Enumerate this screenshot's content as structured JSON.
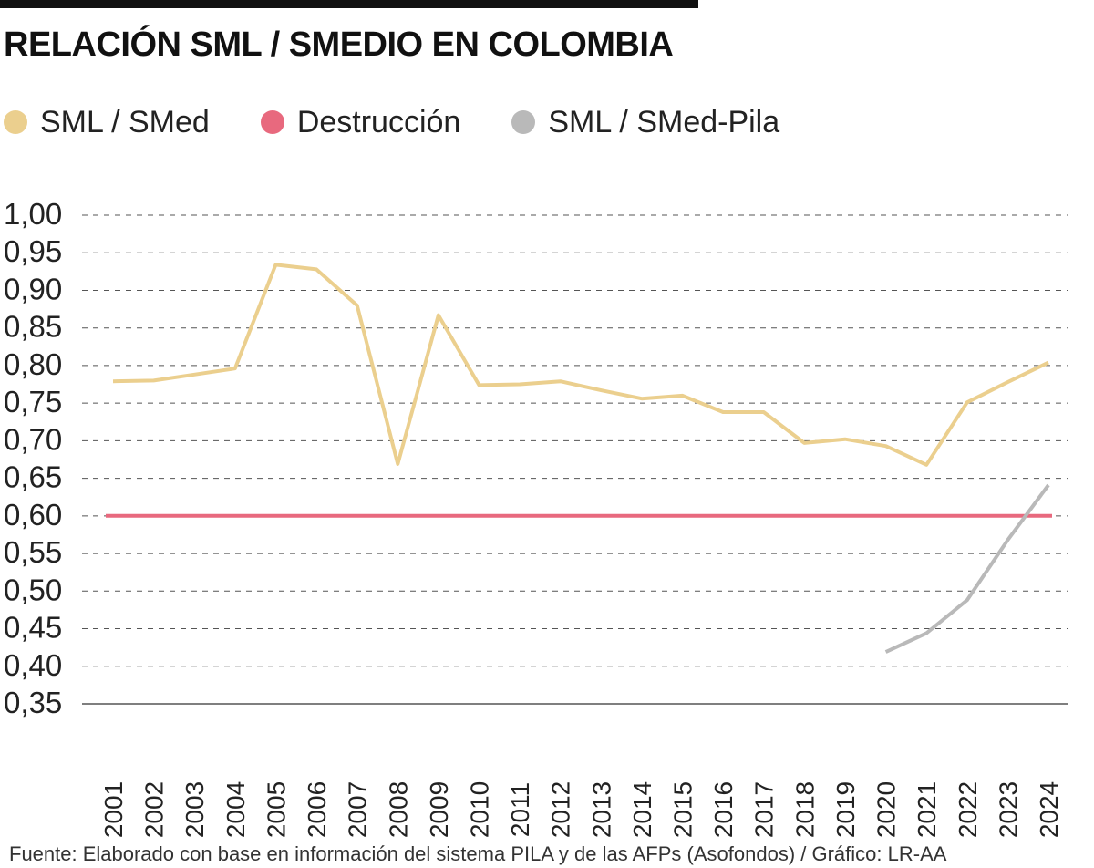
{
  "chart_data": {
    "type": "line",
    "title": "RELACIÓN SML / SMEDIO EN COLOMBIA",
    "x": [
      "2001",
      "2002",
      "2003",
      "2004",
      "2005",
      "2006",
      "2007",
      "2008",
      "2009",
      "2010",
      "2011",
      "2012",
      "2013",
      "2014",
      "2015",
      "2016",
      "2017",
      "2018",
      "2019",
      "2020",
      "2021",
      "2022",
      "2023",
      "2024"
    ],
    "yticks": [
      "1,00",
      "0,95",
      "0,90",
      "0,85",
      "0,80",
      "0,75",
      "0,70",
      "0,65",
      "0,60",
      "0,55",
      "0,50",
      "0,45",
      "0,40",
      "0,35"
    ],
    "ylim": [
      0.35,
      1.0
    ],
    "grid": true,
    "series": [
      {
        "name": "SML / SMed",
        "color": "#ebcf8e",
        "values": [
          0.779,
          0.78,
          0.788,
          0.796,
          0.934,
          0.928,
          0.88,
          0.669,
          0.867,
          0.774,
          0.775,
          0.779,
          0.767,
          0.756,
          0.76,
          0.738,
          0.738,
          0.697,
          0.702,
          0.693,
          0.668,
          0.751,
          0.778,
          0.804
        ]
      },
      {
        "name": "Destrucción",
        "color": "#e8697e",
        "values": [
          0.6,
          0.6,
          0.6,
          0.6,
          0.6,
          0.6,
          0.6,
          0.6,
          0.6,
          0.6,
          0.6,
          0.6,
          0.6,
          0.6,
          0.6,
          0.6,
          0.6,
          0.6,
          0.6,
          0.6,
          0.6,
          0.6,
          0.6,
          0.6
        ]
      },
      {
        "name": "SML / SMed-Pila",
        "color": "#b9b9b9",
        "values": [
          null,
          null,
          null,
          null,
          null,
          null,
          null,
          null,
          null,
          null,
          null,
          null,
          null,
          null,
          null,
          null,
          null,
          null,
          null,
          0.419,
          0.444,
          0.488,
          0.568,
          0.641
        ]
      }
    ]
  },
  "source": "Fuente: Elaborado con base en información del sistema PILA y de las AFPs (Asofondos) / Gráfico: LR-AA"
}
